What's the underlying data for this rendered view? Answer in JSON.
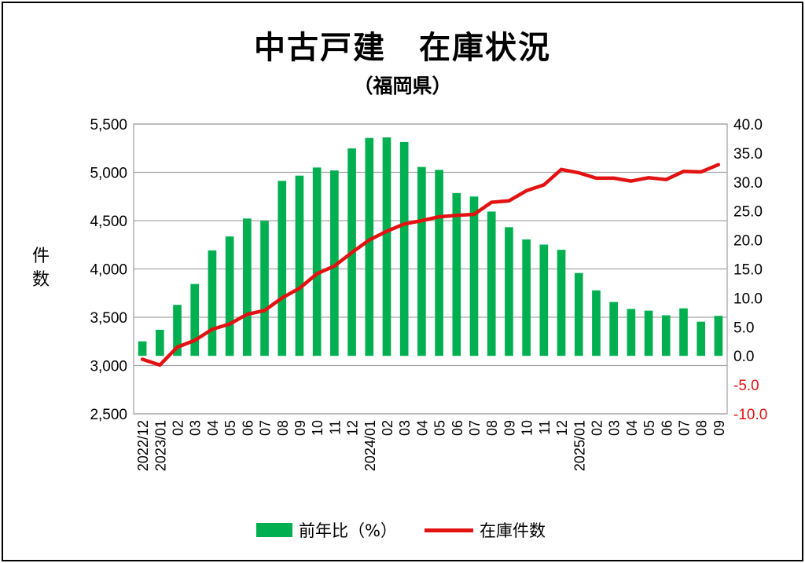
{
  "chart_data": {
    "type": "bar+line",
    "title": "中古戸建　在庫状況",
    "subtitle": "（福岡県）",
    "ylabel": "件\n数",
    "categories": [
      "2022/12",
      "2023/01",
      "02",
      "03",
      "04",
      "05",
      "06",
      "07",
      "08",
      "09",
      "10",
      "11",
      "12",
      "2024/01",
      "02",
      "03",
      "04",
      "05",
      "06",
      "07",
      "08",
      "09",
      "10",
      "11",
      "12",
      "2025/01",
      "02",
      "03",
      "04",
      "05",
      "06",
      "07",
      "08",
      "09"
    ],
    "ylim_left": [
      2500,
      5500
    ],
    "yticks_left": [
      "2,500",
      "3,000",
      "3,500",
      "4,000",
      "4,500",
      "5,000",
      "5,500"
    ],
    "ylim_right": [
      -10.0,
      40.0
    ],
    "yticks_right": [
      "-10.0",
      "-5.0",
      "0.0",
      "5.0",
      "10.0",
      "15.0",
      "20.0",
      "25.0",
      "30.0",
      "35.0",
      "40.0"
    ],
    "grid": true,
    "legend_position": "bottom",
    "series": [
      {
        "name": "前年比（%）",
        "type": "bar",
        "axis": "right",
        "color": "#00B050",
        "values": [
          2.5,
          4.5,
          8.8,
          12.4,
          18.2,
          20.6,
          23.7,
          23.3,
          30.2,
          31.1,
          32.5,
          32.0,
          35.8,
          37.6,
          37.7,
          36.9,
          32.6,
          32.1,
          28.1,
          27.5,
          24.9,
          22.2,
          20.1,
          19.2,
          18.3,
          14.3,
          11.3,
          9.3,
          8.1,
          7.8,
          7.0,
          8.2,
          5.9,
          6.9
        ]
      },
      {
        "name": "在庫件数",
        "type": "line",
        "axis": "left",
        "color": "#E31212",
        "values": [
          3065,
          3005,
          3190,
          3260,
          3375,
          3430,
          3530,
          3570,
          3700,
          3800,
          3950,
          4030,
          4170,
          4300,
          4390,
          4465,
          4500,
          4540,
          4555,
          4565,
          4690,
          4705,
          4810,
          4870,
          5030,
          4995,
          4940,
          4940,
          4910,
          4945,
          4925,
          5010,
          5005,
          5080
        ]
      }
    ],
    "right_tick_colors": {
      "negative": "#E31212",
      "positive": "#000000"
    }
  }
}
